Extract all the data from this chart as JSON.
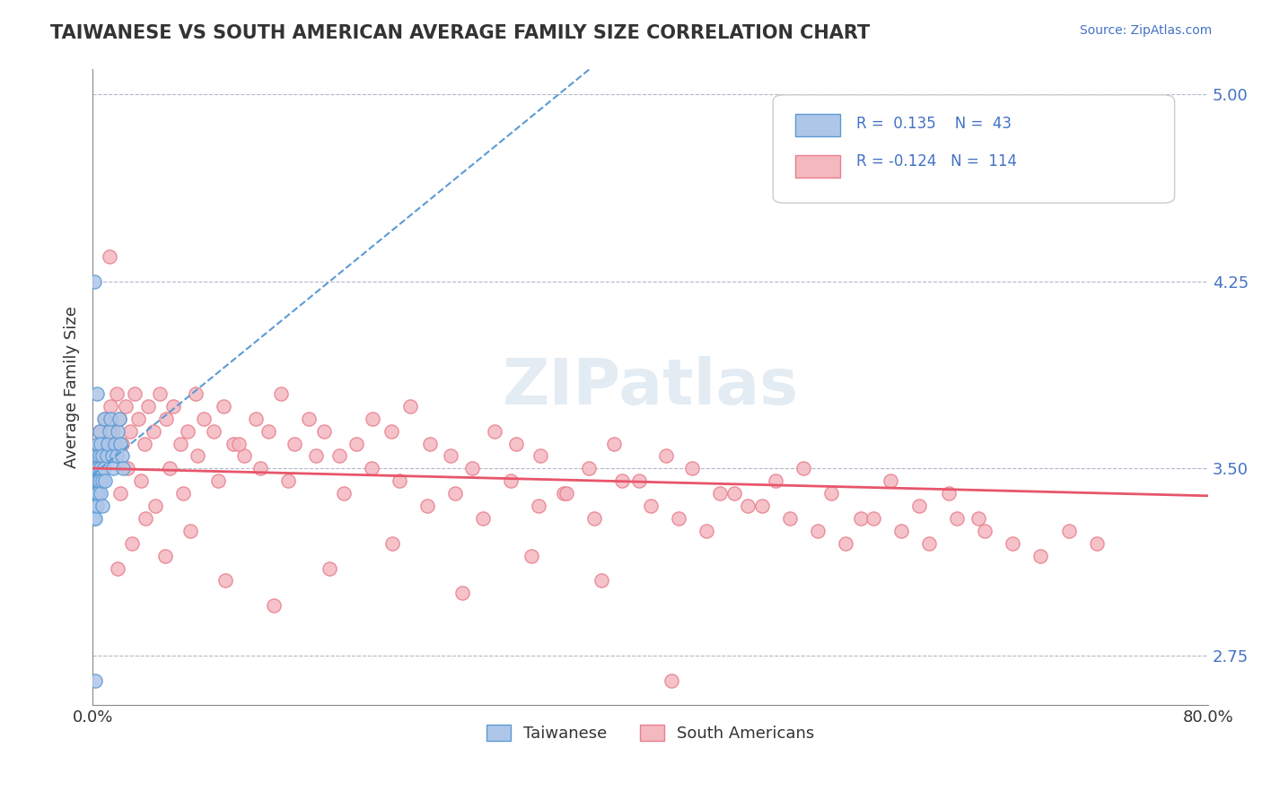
{
  "title": "TAIWANESE VS SOUTH AMERICAN AVERAGE FAMILY SIZE CORRELATION CHART",
  "source_text": "Source: ZipAtlas.com",
  "xlabel": "",
  "ylabel": "Average Family Size",
  "xlim": [
    0.0,
    0.8
  ],
  "ylim": [
    2.55,
    5.1
  ],
  "yticks": [
    2.75,
    3.5,
    4.25,
    5.0
  ],
  "xticks": [
    0.0,
    0.8
  ],
  "xtick_labels": [
    "0.0%",
    "80.0%"
  ],
  "ytick_labels_right": [
    "2.75",
    "3.50",
    "4.25",
    "5.00"
  ],
  "taiwan_color": "#aec6e8",
  "taiwan_edge_color": "#5b9bd5",
  "sa_color": "#f4b8c1",
  "sa_edge_color": "#e87f8c",
  "taiwan_R": 0.135,
  "taiwan_N": 43,
  "sa_R": -0.124,
  "sa_N": 114,
  "trend_taiwan_color": "#5b9bd5",
  "trend_sa_color": "#e8556a",
  "watermark": "ZIPatlas",
  "watermark_color": "#c8d8e8",
  "taiwan_x": [
    0.001,
    0.001,
    0.001,
    0.002,
    0.002,
    0.002,
    0.002,
    0.003,
    0.003,
    0.003,
    0.003,
    0.004,
    0.004,
    0.004,
    0.004,
    0.005,
    0.005,
    0.005,
    0.006,
    0.006,
    0.006,
    0.007,
    0.007,
    0.007,
    0.008,
    0.008,
    0.009,
    0.01,
    0.011,
    0.012,
    0.013,
    0.014,
    0.015,
    0.016,
    0.017,
    0.018,
    0.019,
    0.02,
    0.021,
    0.022,
    0.001,
    0.002,
    0.003
  ],
  "taiwan_y": [
    3.45,
    3.35,
    3.3,
    3.5,
    3.4,
    3.35,
    3.3,
    3.55,
    3.45,
    3.4,
    3.35,
    3.6,
    3.5,
    3.45,
    3.4,
    3.65,
    3.55,
    3.45,
    3.6,
    3.5,
    3.4,
    3.55,
    3.45,
    3.35,
    3.7,
    3.5,
    3.45,
    3.55,
    3.6,
    3.65,
    3.7,
    3.55,
    3.5,
    3.6,
    3.55,
    3.65,
    3.7,
    3.6,
    3.55,
    3.5,
    4.25,
    2.65,
    3.8
  ],
  "sa_x": [
    0.005,
    0.007,
    0.009,
    0.011,
    0.013,
    0.015,
    0.017,
    0.019,
    0.021,
    0.024,
    0.027,
    0.03,
    0.033,
    0.037,
    0.04,
    0.044,
    0.048,
    0.053,
    0.058,
    0.063,
    0.068,
    0.074,
    0.08,
    0.087,
    0.094,
    0.101,
    0.109,
    0.117,
    0.126,
    0.135,
    0.145,
    0.155,
    0.166,
    0.177,
    0.189,
    0.201,
    0.214,
    0.228,
    0.242,
    0.257,
    0.272,
    0.288,
    0.304,
    0.321,
    0.338,
    0.356,
    0.374,
    0.392,
    0.411,
    0.43,
    0.45,
    0.47,
    0.49,
    0.51,
    0.53,
    0.551,
    0.572,
    0.593,
    0.614,
    0.635,
    0.02,
    0.025,
    0.035,
    0.045,
    0.055,
    0.065,
    0.075,
    0.09,
    0.105,
    0.12,
    0.14,
    0.16,
    0.18,
    0.2,
    0.22,
    0.24,
    0.26,
    0.28,
    0.3,
    0.32,
    0.34,
    0.36,
    0.38,
    0.4,
    0.42,
    0.44,
    0.46,
    0.48,
    0.5,
    0.52,
    0.54,
    0.56,
    0.58,
    0.6,
    0.62,
    0.64,
    0.66,
    0.68,
    0.7,
    0.72,
    0.012,
    0.018,
    0.028,
    0.038,
    0.052,
    0.07,
    0.095,
    0.13,
    0.17,
    0.215,
    0.265,
    0.315,
    0.365,
    0.415
  ],
  "sa_y": [
    3.65,
    3.55,
    3.7,
    3.6,
    3.75,
    3.65,
    3.8,
    3.7,
    3.6,
    3.75,
    3.65,
    3.8,
    3.7,
    3.6,
    3.75,
    3.65,
    3.8,
    3.7,
    3.75,
    3.6,
    3.65,
    3.8,
    3.7,
    3.65,
    3.75,
    3.6,
    3.55,
    3.7,
    3.65,
    3.8,
    3.6,
    3.7,
    3.65,
    3.55,
    3.6,
    3.7,
    3.65,
    3.75,
    3.6,
    3.55,
    3.5,
    3.65,
    3.6,
    3.55,
    3.4,
    3.5,
    3.6,
    3.45,
    3.55,
    3.5,
    3.4,
    3.35,
    3.45,
    3.5,
    3.4,
    3.3,
    3.45,
    3.35,
    3.4,
    3.3,
    3.4,
    3.5,
    3.45,
    3.35,
    3.5,
    3.4,
    3.55,
    3.45,
    3.6,
    3.5,
    3.45,
    3.55,
    3.4,
    3.5,
    3.45,
    3.35,
    3.4,
    3.3,
    3.45,
    3.35,
    3.4,
    3.3,
    3.45,
    3.35,
    3.3,
    3.25,
    3.4,
    3.35,
    3.3,
    3.25,
    3.2,
    3.3,
    3.25,
    3.2,
    3.3,
    3.25,
    3.2,
    3.15,
    3.25,
    3.2,
    4.35,
    3.1,
    3.2,
    3.3,
    3.15,
    3.25,
    3.05,
    2.95,
    3.1,
    3.2,
    3.0,
    3.15,
    3.05,
    2.65
  ]
}
